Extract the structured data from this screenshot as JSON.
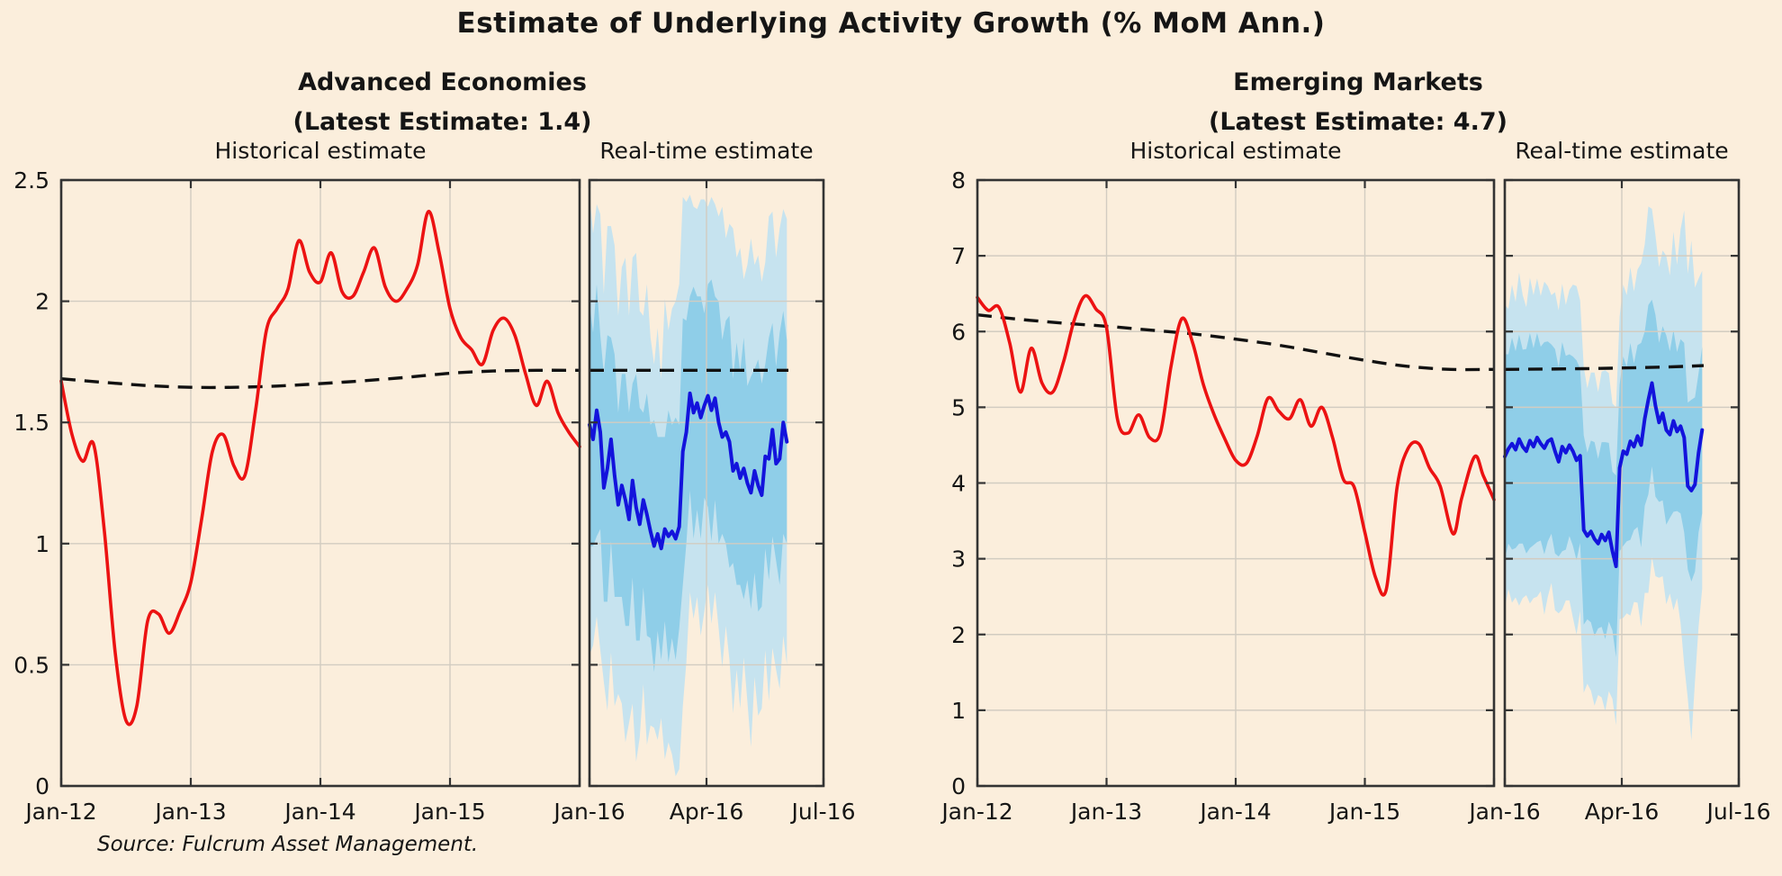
{
  "title": "Estimate of Underlying Activity Growth (% MoM Ann.)",
  "source": "Source: Fulcrum Asset Management.",
  "colors": {
    "background": "#FBEEDC",
    "red_line": "#EC1212",
    "blue_line": "#1313DC",
    "inner_band": "#8FCEE8",
    "outer_band": "#C6E3EF",
    "dashed_line": "#111111",
    "grid": "#D2CCC1",
    "frame": "#333333",
    "text": "#151515"
  },
  "chart_data": {
    "type": "line",
    "title": "Estimate of Underlying Activity Growth (% MoM Ann.)",
    "source": "Source: Fulcrum Asset Management.",
    "legend_position": "none",
    "grid": true,
    "panels": [
      {
        "id": "advanced-economies",
        "subtitle": "Advanced Economies",
        "latest_label": "(Latest Estimate: 1.4)",
        "latest_estimate": 1.4,
        "ylim": [
          0,
          2.5
        ],
        "y_ticks": [
          0,
          0.5,
          1,
          1.5,
          2,
          2.5
        ],
        "y_tick_labels": [
          "0",
          "0.5",
          "1",
          "1.5",
          "2",
          "2.5"
        ],
        "hist": {
          "title": "Historical estimate",
          "xlim": [
            0,
            48
          ],
          "x_grid": [
            12,
            24,
            36
          ],
          "x_ticks": [
            0,
            12,
            24,
            36,
            48
          ],
          "x_tick_labels": [
            "Jan-12",
            "Jan-13",
            "Jan-14",
            "Jan-15"
          ],
          "x_tick_label_months": [
            0,
            12,
            24,
            36
          ],
          "estimate_x": [
            0,
            1,
            2,
            3,
            4,
            5,
            6,
            7,
            8,
            9,
            10,
            11,
            12,
            13,
            14,
            15,
            16,
            17,
            18,
            19,
            20,
            21,
            22,
            23,
            24,
            25,
            26,
            27,
            28,
            29,
            30,
            31,
            32,
            33,
            34,
            35,
            36,
            37,
            38,
            39,
            40,
            41,
            42,
            43,
            44,
            45,
            46,
            47,
            48
          ],
          "estimate_y": [
            1.67,
            1.45,
            1.34,
            1.41,
            1.05,
            0.55,
            0.27,
            0.33,
            0.68,
            0.71,
            0.63,
            0.72,
            0.84,
            1.1,
            1.38,
            1.45,
            1.32,
            1.28,
            1.55,
            1.88,
            1.97,
            2.05,
            2.25,
            2.12,
            2.08,
            2.2,
            2.04,
            2.02,
            2.12,
            2.22,
            2.06,
            2.0,
            2.05,
            2.15,
            2.37,
            2.2,
            1.97,
            1.85,
            1.8,
            1.74,
            1.88,
            1.93,
            1.86,
            1.7,
            1.57,
            1.67,
            1.54,
            1.46,
            1.4
          ],
          "trend": {
            "x": [
              0,
              4,
              8,
              12,
              16,
              20,
              24,
              28,
              32,
              36,
              40,
              44,
              48
            ],
            "y": [
              1.68,
              1.665,
              1.652,
              1.645,
              1.645,
              1.65,
              1.66,
              1.672,
              1.686,
              1.703,
              1.712,
              1.715,
              1.715
            ]
          }
        },
        "rt": {
          "title": "Real-time estimate",
          "xlim": [
            0,
            6
          ],
          "x_grid": [
            3
          ],
          "x_ticks": [
            0,
            3,
            6
          ],
          "x_tick_labels": [
            "Jan-16",
            "Apr-16",
            "Jul-16"
          ],
          "x_tick_label_months": [
            0,
            3,
            6
          ],
          "x_start": 0,
          "x_step": 0.092,
          "estimate": [
            1.49,
            1.43,
            1.55,
            1.46,
            1.23,
            1.31,
            1.43,
            1.28,
            1.16,
            1.24,
            1.18,
            1.1,
            1.26,
            1.15,
            1.08,
            1.18,
            1.12,
            1.05,
            0.99,
            1.04,
            0.98,
            1.06,
            1.03,
            1.05,
            1.02,
            1.07,
            1.38,
            1.46,
            1.62,
            1.54,
            1.58,
            1.52,
            1.57,
            1.61,
            1.55,
            1.6,
            1.5,
            1.44,
            1.46,
            1.42,
            1.3,
            1.33,
            1.27,
            1.31,
            1.25,
            1.21,
            1.3,
            1.24,
            1.2,
            1.36,
            1.35,
            1.47,
            1.33,
            1.35,
            1.5,
            1.42
          ],
          "inner_band_halfwidth": [
            0.5,
            0.44,
            0.52,
            0.4,
            0.47,
            0.55,
            0.42,
            0.5,
            0.38,
            0.46,
            0.52,
            0.44,
            0.4,
            0.55,
            0.48,
            0.36,
            0.5,
            0.44,
            0.52,
            0.4,
            0.46,
            0.38,
            0.52,
            0.44,
            0.5,
            0.42,
            0.55,
            0.46,
            0.4,
            0.52,
            0.44,
            0.5,
            0.38,
            0.46,
            0.54,
            0.42,
            0.5,
            0.4,
            0.46,
            0.52,
            0.38,
            0.5,
            0.44,
            0.54,
            0.4,
            0.48,
            0.42,
            0.52,
            0.46,
            0.38,
            0.5,
            0.44,
            0.4,
            0.52,
            0.46,
            0.42
          ],
          "outer_band_halfwidth": [
            0.95,
            0.85,
            0.85,
            0.9,
            0.8,
            1.0,
            0.88,
            0.95,
            0.78,
            0.9,
            1.0,
            0.84,
            0.92,
            1.05,
            0.88,
            0.76,
            0.95,
            0.8,
            0.75,
            0.85,
            0.7,
            0.95,
            0.85,
            0.92,
            0.98,
            1.0,
            1.05,
            0.95,
            0.82,
            0.85,
            0.8,
            0.9,
            0.85,
            0.78,
            0.88,
            0.8,
            0.85,
            0.95,
            0.8,
            0.9,
            1.0,
            0.85,
            0.95,
            0.78,
            0.9,
            1.05,
            0.85,
            0.95,
            0.88,
            0.8,
            1.0,
            0.9,
            0.85,
            0.95,
            0.88,
            0.92
          ],
          "trend": {
            "x": [
              0,
              5.1
            ],
            "y": [
              1.715,
              1.715
            ]
          }
        }
      },
      {
        "id": "emerging-markets",
        "subtitle": "Emerging Markets",
        "latest_label": "(Latest Estimate: 4.7)",
        "latest_estimate": 4.7,
        "ylim": [
          0,
          8
        ],
        "y_ticks": [
          0,
          1,
          2,
          3,
          4,
          5,
          6,
          7,
          8
        ],
        "y_tick_labels": [
          "0",
          "1",
          "2",
          "3",
          "4",
          "5",
          "6",
          "7",
          "8"
        ],
        "hist": {
          "title": "Historical estimate",
          "xlim": [
            0,
            48
          ],
          "x_grid": [
            12,
            24,
            36
          ],
          "x_ticks": [
            0,
            12,
            24,
            36,
            48
          ],
          "x_tick_labels": [
            "Jan-12",
            "Jan-13",
            "Jan-14",
            "Jan-15"
          ],
          "x_tick_label_months": [
            0,
            12,
            24,
            36
          ],
          "estimate_x": [
            0,
            1,
            2,
            3,
            4,
            5,
            6,
            7,
            8,
            9,
            10,
            11,
            12,
            13,
            14,
            15,
            16,
            17,
            18,
            19,
            20,
            21,
            22,
            23,
            24,
            25,
            26,
            27,
            28,
            29,
            30,
            31,
            32,
            33,
            34,
            35,
            36,
            37,
            38,
            39,
            40,
            41,
            42,
            43,
            44.2,
            45,
            46.2,
            47,
            48
          ],
          "estimate_y": [
            6.45,
            6.28,
            6.32,
            5.85,
            5.2,
            5.78,
            5.32,
            5.2,
            5.6,
            6.15,
            6.47,
            6.3,
            6.05,
            4.85,
            4.66,
            4.9,
            4.6,
            4.66,
            5.55,
            6.17,
            5.85,
            5.3,
            4.9,
            4.58,
            4.3,
            4.26,
            4.62,
            5.12,
            4.95,
            4.85,
            5.1,
            4.75,
            5.0,
            4.6,
            4.05,
            3.95,
            3.35,
            2.75,
            2.6,
            3.95,
            4.45,
            4.52,
            4.2,
            3.96,
            3.33,
            3.8,
            4.35,
            4.1,
            3.78
          ],
          "trend": {
            "x": [
              0,
              4,
              8,
              12,
              16,
              20,
              24,
              28,
              32,
              36,
              40,
              44,
              48
            ],
            "y": [
              6.22,
              6.16,
              6.11,
              6.07,
              6.02,
              5.97,
              5.9,
              5.82,
              5.72,
              5.62,
              5.54,
              5.5,
              5.5
            ]
          }
        },
        "rt": {
          "title": "Real-time estimate",
          "xlim": [
            0,
            6
          ],
          "x_grid": [
            3
          ],
          "x_ticks": [
            0,
            3,
            6
          ],
          "x_tick_labels": [
            "Jan-16",
            "Apr-16",
            "Jul-16"
          ],
          "x_tick_label_months": [
            0,
            3,
            6
          ],
          "x_start": 0,
          "x_step": 0.092,
          "estimate": [
            4.35,
            4.45,
            4.52,
            4.44,
            4.58,
            4.48,
            4.42,
            4.56,
            4.48,
            4.6,
            4.52,
            4.46,
            4.55,
            4.58,
            4.42,
            4.28,
            4.48,
            4.4,
            4.5,
            4.42,
            4.3,
            4.36,
            3.38,
            3.3,
            3.36,
            3.26,
            3.2,
            3.32,
            3.24,
            3.35,
            3.1,
            2.9,
            4.2,
            4.42,
            4.38,
            4.55,
            4.48,
            4.62,
            4.5,
            4.85,
            5.1,
            5.32,
            5.02,
            4.8,
            4.92,
            4.7,
            4.64,
            4.82,
            4.68,
            4.75,
            4.6,
            3.96,
            3.9,
            3.98,
            4.4,
            4.7
          ],
          "inner_band_halfwidth": [
            1.35,
            1.25,
            1.4,
            1.3,
            1.38,
            1.28,
            1.35,
            1.42,
            1.3,
            1.38,
            1.28,
            1.4,
            1.32,
            1.25,
            1.35,
            1.25,
            1.38,
            1.28,
            1.2,
            1.25,
            1.32,
            1.15,
            1.25,
            1.1,
            1.2,
            1.28,
            1.12,
            1.22,
            1.3,
            1.18,
            1.05,
            1.2,
            1.1,
            1.25,
            1.15,
            1.3,
            1.1,
            1.2,
            1.35,
            1.15,
            1.25,
            1.1,
            1.2,
            1.05,
            1.15,
            1.25,
            1.1,
            1.2,
            1.05,
            1.15,
            1.25,
            1.1,
            1.2,
            1.15,
            1.05,
            1.1
          ],
          "outer_band_halfwidth": [
            2.0,
            1.85,
            2.1,
            1.95,
            2.2,
            2.0,
            1.9,
            2.15,
            2.0,
            2.1,
            1.95,
            2.2,
            2.05,
            1.9,
            2.1,
            2.0,
            2.15,
            1.95,
            2.05,
            2.2,
            2.3,
            2.05,
            2.15,
            1.95,
            2.1,
            2.2,
            2.0,
            2.15,
            2.25,
            2.1,
            1.95,
            2.1,
            2.0,
            2.2,
            2.1,
            2.3,
            2.05,
            2.2,
            2.4,
            2.3,
            2.55,
            2.3,
            2.25,
            2.05,
            2.15,
            2.3,
            2.1,
            2.5,
            2.2,
            2.6,
            3.0,
            2.8,
            3.3,
            2.6,
            2.3,
            2.1
          ],
          "trend": {
            "x": [
              0,
              2,
              4,
              5.1
            ],
            "y": [
              5.5,
              5.51,
              5.53,
              5.55
            ]
          }
        }
      }
    ]
  }
}
